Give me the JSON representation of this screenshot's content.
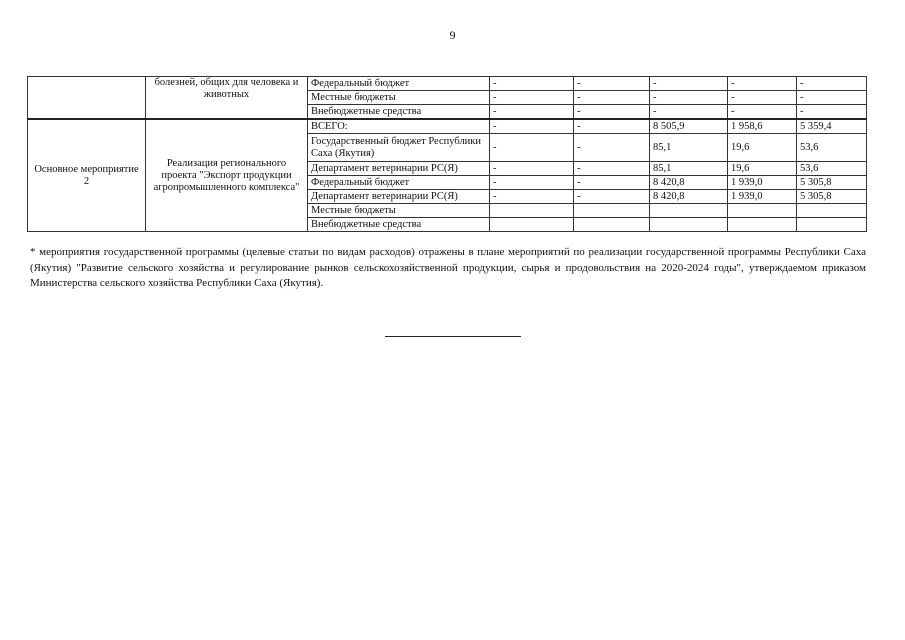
{
  "page_number": "9",
  "table": {
    "group1": {
      "col1": "",
      "col2": "болезней, общих для человека и животных",
      "rows": [
        {
          "source": "Федеральный бюджет",
          "values": [
            "-",
            "-",
            "-",
            "-",
            "-"
          ]
        },
        {
          "source": "Местные бюджеты",
          "values": [
            "-",
            "-",
            "-",
            "-",
            "-"
          ]
        },
        {
          "source": "Внебюджетные средства",
          "values": [
            "-",
            "-",
            "-",
            "-",
            "-"
          ]
        }
      ]
    },
    "group2": {
      "col1": "Основное мероприятие 2",
      "col2": "Реализация регионального проекта \"Экспорт продукции агропромышленного комплекса\"",
      "rows": [
        {
          "source": "ВСЕГО:",
          "values": [
            "-",
            "-",
            "8 505,9",
            "1 958,6",
            "5 359,4"
          ]
        },
        {
          "source": "Государственный бюджет Республики Саха (Якутия)",
          "values": [
            "-",
            "-",
            "85,1",
            "19,6",
            "53,6"
          ]
        },
        {
          "source": "Департамент ветеринарии РС(Я)",
          "values": [
            "-",
            "-",
            "85,1",
            "19,6",
            "53,6"
          ]
        },
        {
          "source": "Федеральный бюджет",
          "values": [
            "-",
            "-",
            "8 420,8",
            "1 939,0",
            "5 305,8"
          ]
        },
        {
          "source": "Департамент ветеринарии РС(Я)",
          "values": [
            "-",
            "-",
            "8 420,8",
            "1 939,0",
            "5 305,8"
          ]
        },
        {
          "source": "Местные бюджеты",
          "values": [
            "",
            "",
            "",
            "",
            ""
          ]
        },
        {
          "source": "Внебюджетные средства",
          "values": [
            "",
            "",
            "",
            "",
            ""
          ]
        }
      ]
    }
  },
  "footnote": "* мероприятия государственной программы (целевые статьи по видам расходов) отражены в плане мероприятий по реализации государственной программы Республики Саха (Якутия) \"Развитие сельского хозяйства и регулирование рынков сельскохозяйственной продукции, сырья и продовольствия на 2020-2024 годы\", утверждаемом приказом Министерства сельского хозяйства Республики Саха (Якутия)."
}
